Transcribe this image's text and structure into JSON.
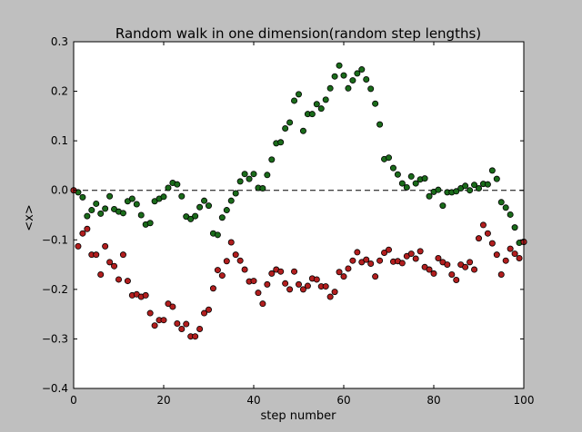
{
  "chart_data": {
    "type": "scatter",
    "title": "Random walk in one dimension(random step lengths)",
    "xlabel": "step number",
    "ylabel": "<x>",
    "xlim": [
      0,
      100
    ],
    "ylim": [
      -0.4,
      0.3
    ],
    "xticks": [
      0,
      20,
      40,
      60,
      80,
      100
    ],
    "yticks": [
      -0.4,
      -0.3,
      -0.2,
      -0.1,
      0.0,
      0.1,
      0.2,
      0.3
    ],
    "xtick_labels": [
      "0",
      "20",
      "40",
      "60",
      "80",
      "100"
    ],
    "ytick_labels": [
      "−0.4",
      "−0.3",
      "−0.2",
      "−0.1",
      "0.0",
      "0.1",
      "0.2",
      "0.3"
    ],
    "reference_line": {
      "y": 0.0,
      "style": "dashed",
      "color": "#000000"
    },
    "grid": false,
    "legend": "none",
    "series": [
      {
        "color": "#1a6b1a",
        "x": [
          0,
          1,
          2,
          3,
          4,
          5,
          6,
          7,
          8,
          9,
          10,
          11,
          12,
          13,
          14,
          15,
          16,
          17,
          18,
          19,
          20,
          21,
          22,
          23,
          24,
          25,
          26,
          27,
          28,
          29,
          30,
          31,
          32,
          33,
          34,
          35,
          36,
          37,
          38,
          39,
          40,
          41,
          42,
          43,
          44,
          45,
          46,
          47,
          48,
          49,
          50,
          51,
          52,
          53,
          54,
          55,
          56,
          57,
          58,
          59,
          60,
          61,
          62,
          63,
          64,
          65,
          66,
          67,
          68,
          69,
          70,
          71,
          72,
          73,
          74,
          75,
          76,
          77,
          78,
          79,
          80,
          81,
          82,
          83,
          84,
          85,
          86,
          87,
          88,
          89,
          90,
          91,
          92,
          93,
          94,
          95,
          96,
          97,
          98,
          99,
          100
        ],
        "y": [
          0.0,
          -0.004,
          -0.014,
          -0.052,
          -0.04,
          -0.027,
          -0.047,
          -0.037,
          -0.012,
          -0.038,
          -0.043,
          -0.046,
          -0.022,
          -0.017,
          -0.028,
          -0.05,
          -0.069,
          -0.066,
          -0.022,
          -0.017,
          -0.013,
          0.005,
          0.015,
          0.012,
          -0.012,
          -0.053,
          -0.058,
          -0.052,
          -0.034,
          -0.021,
          -0.031,
          -0.087,
          -0.09,
          -0.055,
          -0.04,
          -0.021,
          -0.006,
          0.018,
          0.033,
          0.023,
          0.033,
          0.005,
          0.004,
          0.031,
          0.062,
          0.095,
          0.097,
          0.125,
          0.137,
          0.181,
          0.194,
          0.12,
          0.154,
          0.154,
          0.174,
          0.165,
          0.183,
          0.206,
          0.23,
          0.252,
          0.232,
          0.206,
          0.222,
          0.236,
          0.244,
          0.224,
          0.205,
          0.175,
          0.133,
          0.063,
          0.066,
          0.045,
          0.032,
          0.014,
          0.006,
          0.028,
          0.014,
          0.022,
          0.024,
          -0.012,
          -0.003,
          0.001,
          -0.031,
          -0.004,
          -0.004,
          -0.002,
          0.004,
          0.009,
          0.0,
          0.011,
          0.004,
          0.013,
          0.012,
          0.04,
          0.023,
          -0.024,
          -0.035,
          -0.049,
          -0.075,
          -0.106,
          -0.104
        ]
      },
      {
        "color": "#b21e1e",
        "x": [
          0,
          1,
          2,
          3,
          4,
          5,
          6,
          7,
          8,
          9,
          10,
          11,
          12,
          13,
          14,
          15,
          16,
          17,
          18,
          19,
          20,
          21,
          22,
          23,
          24,
          25,
          26,
          27,
          28,
          29,
          30,
          31,
          32,
          33,
          34,
          35,
          36,
          37,
          38,
          39,
          40,
          41,
          42,
          43,
          44,
          45,
          46,
          47,
          48,
          49,
          50,
          51,
          52,
          53,
          54,
          55,
          56,
          57,
          58,
          59,
          60,
          61,
          62,
          63,
          64,
          65,
          66,
          67,
          68,
          69,
          70,
          71,
          72,
          73,
          74,
          75,
          76,
          77,
          78,
          79,
          80,
          81,
          82,
          83,
          84,
          85,
          86,
          87,
          88,
          89,
          90,
          91,
          92,
          93,
          94,
          95,
          96,
          97,
          98,
          99,
          100
        ],
        "y": [
          0.0,
          -0.113,
          -0.087,
          -0.078,
          -0.13,
          -0.13,
          -0.17,
          -0.113,
          -0.145,
          -0.153,
          -0.18,
          -0.13,
          -0.183,
          -0.212,
          -0.21,
          -0.215,
          -0.212,
          -0.248,
          -0.273,
          -0.262,
          -0.262,
          -0.229,
          -0.235,
          -0.269,
          -0.28,
          -0.27,
          -0.295,
          -0.295,
          -0.28,
          -0.248,
          -0.241,
          -0.198,
          -0.161,
          -0.172,
          -0.143,
          -0.105,
          -0.13,
          -0.142,
          -0.16,
          -0.184,
          -0.183,
          -0.207,
          -0.229,
          -0.19,
          -0.168,
          -0.16,
          -0.164,
          -0.188,
          -0.2,
          -0.164,
          -0.19,
          -0.2,
          -0.193,
          -0.178,
          -0.18,
          -0.194,
          -0.194,
          -0.215,
          -0.205,
          -0.165,
          -0.174,
          -0.158,
          -0.142,
          -0.125,
          -0.145,
          -0.14,
          -0.148,
          -0.174,
          -0.142,
          -0.126,
          -0.12,
          -0.144,
          -0.143,
          -0.147,
          -0.133,
          -0.128,
          -0.138,
          -0.123,
          -0.155,
          -0.16,
          -0.168,
          -0.137,
          -0.145,
          -0.15,
          -0.17,
          -0.181,
          -0.15,
          -0.155,
          -0.145,
          -0.16,
          -0.097,
          -0.07,
          -0.087,
          -0.107,
          -0.13,
          -0.17,
          -0.142,
          -0.118,
          -0.128,
          -0.137,
          -0.104
        ]
      }
    ]
  }
}
